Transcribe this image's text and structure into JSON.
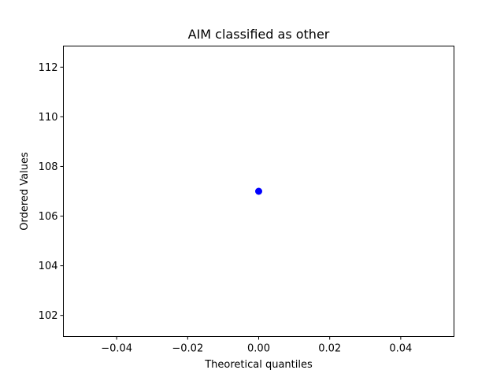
{
  "chart_data": {
    "type": "scatter",
    "title": "AIM classified as other",
    "xlabel": "Theoretical quantiles",
    "ylabel": "Ordered Values",
    "xlim": [
      -0.055,
      0.055
    ],
    "ylim": [
      101.15,
      112.85
    ],
    "xticks": [
      -0.04,
      -0.02,
      0.0,
      0.02,
      0.04
    ],
    "xtick_labels": [
      "−0.04",
      "−0.02",
      "0.00",
      "0.02",
      "0.04"
    ],
    "yticks": [
      102,
      104,
      106,
      108,
      110,
      112
    ],
    "ytick_labels": [
      "102",
      "104",
      "106",
      "108",
      "110",
      "112"
    ],
    "grid": false,
    "legend": false,
    "series": [
      {
        "color": "#0000ff",
        "marker": "circle",
        "points": [
          {
            "x": 0.0,
            "y": 107
          }
        ]
      }
    ]
  }
}
